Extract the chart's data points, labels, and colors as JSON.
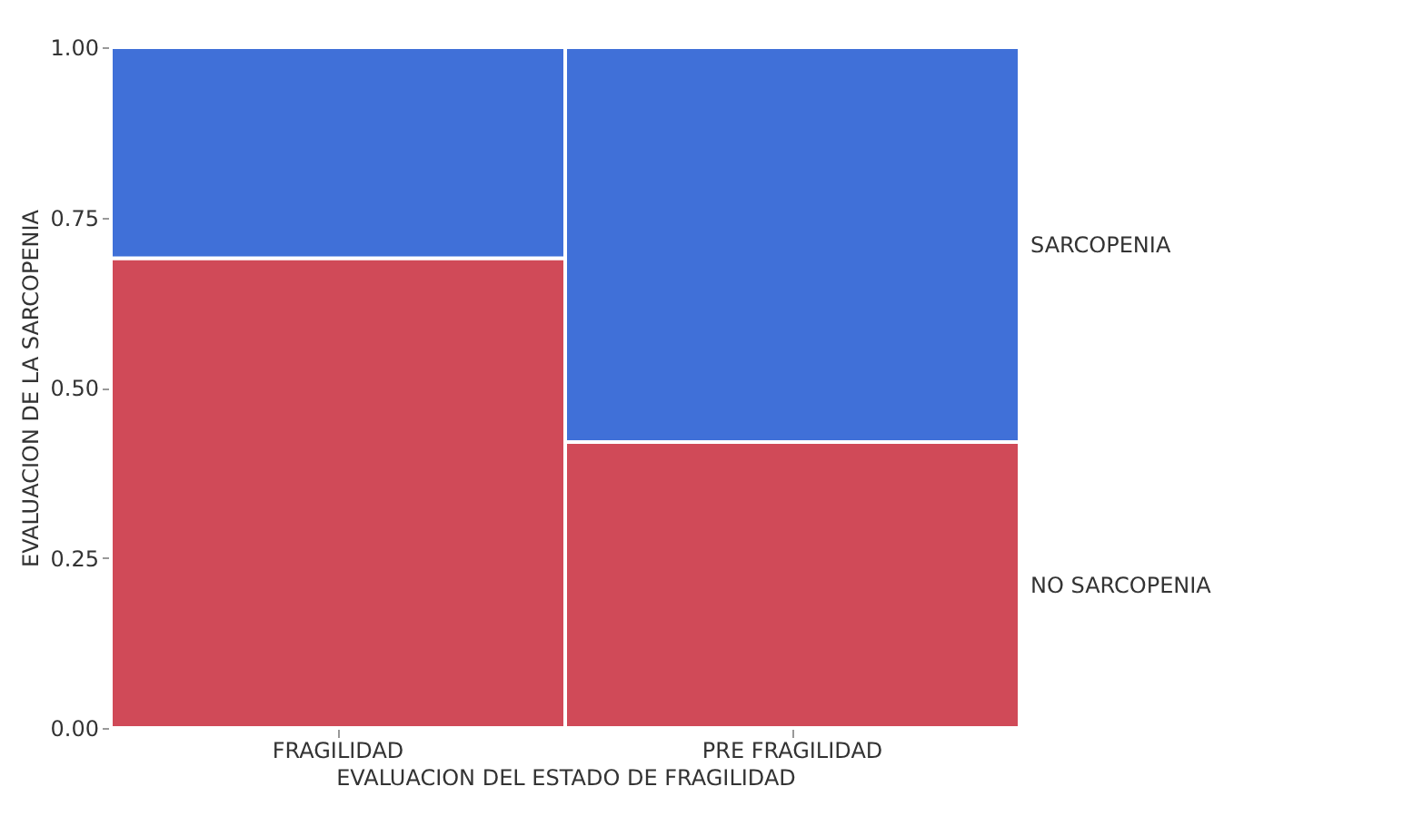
{
  "chart_data": {
    "type": "bar",
    "stacked": true,
    "xlabel": "EVALUACION DEL ESTADO DE FRAGILIDAD",
    "ylabel": "EVALUACION DE LA SARCOPENIA",
    "categories": [
      "FRAGILIDAD",
      "PRE FRAGILIDAD"
    ],
    "series": [
      {
        "name": "NO SARCOPENIA",
        "color": "#d04a58",
        "values": [
          0.69,
          0.42
        ]
      },
      {
        "name": "SARCOPENIA",
        "color": "#4070d8",
        "values": [
          0.31,
          0.58
        ]
      }
    ],
    "ylim": [
      0,
      1
    ],
    "yticks": [
      {
        "value": 0,
        "label": "0.00"
      },
      {
        "value": 0.25,
        "label": "0.25"
      },
      {
        "value": 0.5,
        "label": "0.50"
      },
      {
        "value": 0.75,
        "label": "0.75"
      },
      {
        "value": 1,
        "label": "1.00"
      }
    ]
  }
}
